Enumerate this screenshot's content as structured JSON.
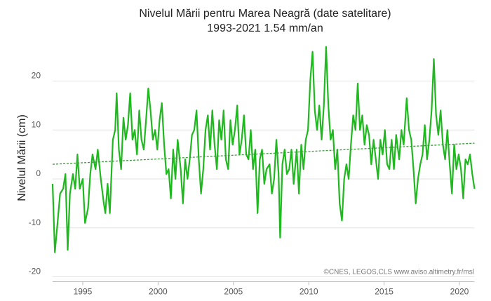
{
  "chart_data": {
    "type": "line",
    "title": "Nivelul Mării pentru Marea Neagră (date satelitare)",
    "subtitle": "1993-2021 1.54 mm/an",
    "ylabel": "Nivelul Mării (cm)",
    "annotation": "©CNES, LEGOS,CLS www.aviso.altimetry.fr/msl",
    "x": [
      1993.0,
      1993.15,
      1993.3,
      1993.5,
      1993.7,
      1993.85,
      1994.0,
      1994.15,
      1994.35,
      1994.5,
      1994.65,
      1994.8,
      1995.0,
      1995.15,
      1995.35,
      1995.5,
      1995.65,
      1995.85,
      1996.0,
      1996.2,
      1996.4,
      1996.5,
      1996.65,
      1996.8,
      1997.0,
      1997.15,
      1997.25,
      1997.4,
      1997.55,
      1997.7,
      1997.85,
      1998.0,
      1998.15,
      1998.3,
      1998.45,
      1998.6,
      1998.75,
      1998.9,
      1999.05,
      1999.2,
      1999.35,
      1999.5,
      1999.65,
      1999.8,
      1999.95,
      2000.1,
      2000.25,
      2000.4,
      2000.55,
      2000.7,
      2000.85,
      2001.0,
      2001.15,
      2001.3,
      2001.5,
      2001.65,
      2001.8,
      2001.95,
      2002.1,
      2002.25,
      2002.4,
      2002.55,
      2002.7,
      2002.85,
      2003.0,
      2003.15,
      2003.3,
      2003.45,
      2003.6,
      2003.75,
      2003.9,
      2004.05,
      2004.2,
      2004.35,
      2004.5,
      2004.65,
      2004.8,
      2004.95,
      2005.1,
      2005.25,
      2005.4,
      2005.55,
      2005.7,
      2005.85,
      2006.0,
      2006.15,
      2006.3,
      2006.45,
      2006.6,
      2006.75,
      2006.9,
      2007.05,
      2007.2,
      2007.4,
      2007.55,
      2007.7,
      2007.85,
      2008.0,
      2008.1,
      2008.25,
      2008.4,
      2008.55,
      2008.7,
      2008.85,
      2009.0,
      2009.2,
      2009.35,
      2009.5,
      2009.65,
      2009.8,
      2009.95,
      2010.1,
      2010.25,
      2010.4,
      2010.55,
      2010.7,
      2010.85,
      2011.0,
      2011.15,
      2011.3,
      2011.45,
      2011.6,
      2011.75,
      2011.9,
      2012.05,
      2012.2,
      2012.35,
      2012.5,
      2012.65,
      2012.8,
      2012.95,
      2013.1,
      2013.25,
      2013.4,
      2013.55,
      2013.7,
      2013.85,
      2014.0,
      2014.15,
      2014.3,
      2014.45,
      2014.6,
      2014.75,
      2014.9,
      2015.05,
      2015.2,
      2015.35,
      2015.5,
      2015.65,
      2015.8,
      2016.0,
      2016.15,
      2016.3,
      2016.5,
      2016.65,
      2016.8,
      2016.95,
      2017.1,
      2017.25,
      2017.4,
      2017.55,
      2017.7,
      2017.85,
      2018.0,
      2018.15,
      2018.3,
      2018.45,
      2018.6,
      2018.75,
      2018.9,
      2019.05,
      2019.2,
      2019.35,
      2019.5,
      2019.65,
      2019.8,
      2019.95,
      2020.1,
      2020.25,
      2020.4,
      2020.55,
      2020.7,
      2020.85,
      2021.0
    ],
    "series": [
      {
        "color": "#1fb81f",
        "values": [
          -1,
          -15,
          -10,
          -3,
          -2,
          1,
          -14.5,
          -3,
          1,
          -2,
          5,
          -2,
          0,
          -9,
          -6,
          1,
          5,
          2,
          6,
          0,
          -5,
          -7,
          -1,
          -7,
          8,
          10,
          17.5,
          6,
          2,
          12.5,
          8,
          11,
          17.5,
          8,
          10,
          5,
          14,
          8,
          6,
          12,
          18.5,
          14,
          8,
          10,
          6,
          12,
          15.5,
          7,
          1,
          2,
          -4,
          6,
          0,
          8,
          2,
          -5,
          4,
          0,
          4,
          9,
          10,
          14,
          4,
          -3,
          2,
          10,
          13,
          6,
          14,
          7,
          2,
          12,
          8,
          14,
          4,
          2,
          12,
          7,
          10,
          15,
          5,
          8,
          13,
          5,
          4,
          10,
          2,
          6,
          -7,
          4,
          6,
          -1,
          2,
          3,
          -3,
          0,
          8,
          1,
          -12,
          3,
          6,
          1,
          2,
          6,
          -1,
          6,
          -3,
          7,
          2,
          8,
          10,
          20,
          26,
          14,
          10,
          15,
          8,
          15,
          27,
          15,
          8,
          10,
          2,
          6,
          -5,
          -8.5,
          0,
          3,
          0,
          7,
          13,
          10,
          19.5,
          10,
          13,
          7,
          11,
          9,
          3,
          8,
          4,
          0,
          8,
          5,
          10,
          3,
          2,
          8,
          2,
          9,
          4,
          10,
          7,
          16.5,
          10,
          8,
          2,
          -5,
          0,
          3,
          5,
          11,
          4,
          8,
          14,
          24.5,
          13,
          9,
          14,
          7,
          4,
          10,
          3,
          -3,
          7,
          2,
          5,
          2,
          -4,
          4,
          3,
          5,
          1,
          -2
        ]
      }
    ],
    "trend": {
      "x": [
        1993,
        2021
      ],
      "values": [
        3,
        7.3
      ],
      "color": "#3a9a3a"
    },
    "xlim": [
      1993,
      2021
    ],
    "xticks": [
      1995,
      2000,
      2005,
      2010,
      2015,
      2020
    ],
    "ylim": [
      -21,
      28
    ],
    "yticks": [
      -20,
      -10,
      0,
      10,
      20
    ],
    "grid": true
  }
}
